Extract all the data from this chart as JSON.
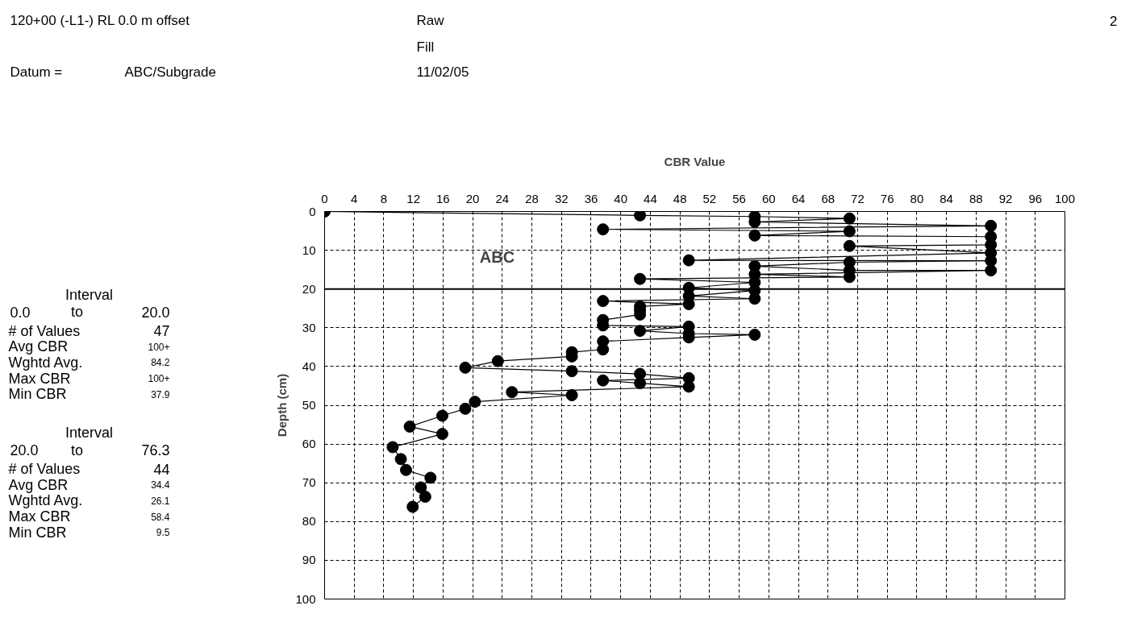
{
  "chart_data": {
    "type": "line",
    "title": "120+00 (-L1-) RL 0.0 m offset",
    "xlabel": "CBR Value",
    "ylabel": "Depth (cm)",
    "annotations": [
      "Datum =",
      "ABC/Subgrade",
      "Raw",
      "Fill",
      "11/02/05",
      "2",
      "Interval",
      "0.0",
      "to",
      "20.0",
      "# of Values",
      "47",
      "Avg CBR",
      "100+",
      "Wghtd Avg.",
      "84.2",
      "Max CBR",
      "100+",
      "Min CBR",
      "37.9",
      "Interval",
      "20.0",
      "to",
      "76.3",
      "# of Values",
      "44",
      "Avg CBR",
      "34.4",
      "Wghtd Avg.",
      "26.1",
      "Max CBR",
      "58.4",
      "Min CBR",
      "9.5",
      "ABC"
    ],
    "xlim": [
      0,
      100
    ],
    "ylim": [
      100,
      0
    ],
    "xticks": [
      0,
      4,
      8,
      12,
      16,
      20,
      24,
      28,
      32,
      36,
      40,
      44,
      48,
      52,
      56,
      60,
      64,
      68,
      72,
      76,
      80,
      84,
      88,
      92,
      96,
      100
    ],
    "yticks": [
      0,
      10,
      20,
      30,
      40,
      50,
      60,
      70,
      80,
      90,
      100
    ],
    "grid": true,
    "marker": "circle",
    "line_style": "solid",
    "ref_lines": [
      {
        "axis": "y",
        "value": 20,
        "color": "#000000"
      }
    ],
    "series": [
      {
        "color": "#000000",
        "x": [
          0,
          42.6,
          58.1,
          70.9,
          58.1,
          90,
          37.6,
          70.9,
          58.1,
          90,
          90,
          70.9,
          90,
          49.2,
          90,
          70.9,
          58.1,
          70.9,
          90,
          58.1,
          70.9,
          42.6,
          58.1,
          49.2,
          58.1,
          49.2,
          58.1,
          37.6,
          49.2,
          42.6,
          42.6,
          42.6,
          37.6,
          37.6,
          49.2,
          42.6,
          49.2,
          58.1,
          49.2,
          37.6,
          37.6,
          33.4,
          33.4,
          23.4,
          19.0,
          33.4,
          42.6,
          49.2,
          37.6,
          42.6,
          49.2,
          25.3,
          33.4,
          20.3,
          19.0,
          15.9,
          11.5,
          15.9,
          9.2,
          10.3,
          11.0,
          14.3,
          13.0,
          13.6,
          11.9
        ],
        "values": [
          0,
          1.0,
          1.3,
          1.8,
          2.7,
          3.7,
          4.6,
          5.1,
          6.2,
          6.5,
          8.6,
          8.9,
          10.7,
          12.6,
          12.7,
          13.1,
          14.1,
          15.2,
          15.2,
          16.2,
          16.9,
          17.4,
          18.3,
          19.7,
          20.4,
          21.8,
          22.5,
          23.1,
          23.9,
          24.5,
          25.5,
          26.6,
          28.0,
          29.4,
          29.7,
          30.8,
          31.5,
          31.8,
          32.5,
          33.5,
          35.6,
          36.3,
          37.4,
          38.6,
          40.3,
          41.2,
          41.9,
          43.0,
          43.6,
          44.3,
          45.2,
          46.6,
          47.4,
          49.1,
          50.9,
          52.7,
          55.5,
          57.4,
          60.8,
          63.9,
          66.7,
          68.7,
          71.2,
          73.6,
          76.2
        ]
      }
    ]
  }
}
